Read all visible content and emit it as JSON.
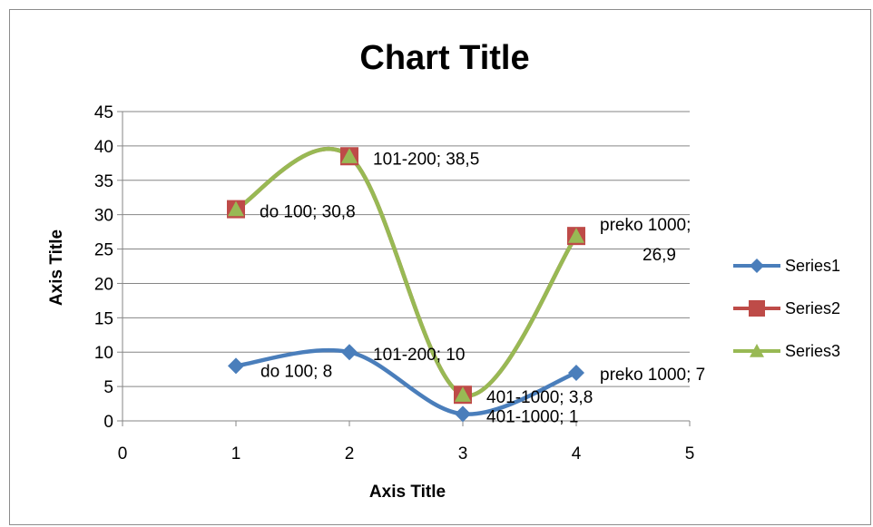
{
  "chart_data": {
    "type": "scatter",
    "title": "Chart Title",
    "xlabel": "Axis Title",
    "ylabel": "Axis Title",
    "xlim": [
      0,
      5
    ],
    "ylim": [
      0,
      45
    ],
    "xticks": [
      "0",
      "1",
      "2",
      "3",
      "4",
      "5"
    ],
    "yticks": [
      "0",
      "5",
      "10",
      "15",
      "20",
      "25",
      "30",
      "35",
      "40",
      "45"
    ],
    "grid": "horizontal",
    "legend": "right",
    "smooth_lines": true,
    "series": [
      {
        "name": "Series1",
        "color": "#4a7ebb",
        "marker": "diamond",
        "x": [
          1,
          2,
          3,
          4
        ],
        "y": [
          8,
          10,
          1,
          7
        ],
        "labels": [
          "do 100; 8",
          "101-200; 10",
          "401-1000; 1",
          "preko 1000; 7"
        ]
      },
      {
        "name": "Series2",
        "color": "#be4b48",
        "marker": "square",
        "x": [
          1,
          2,
          3,
          4
        ],
        "y": [
          30.8,
          38.5,
          3.8,
          26.9
        ],
        "labels": [
          "do 100; 30,8",
          "101-200; 38,5",
          "401-1000; 3,8",
          "preko 1000; 26,9"
        ]
      },
      {
        "name": "Series3",
        "color": "#98b954",
        "marker": "triangle",
        "x": [
          1,
          2,
          3,
          4
        ],
        "y": [
          30.8,
          38.5,
          3.8,
          26.9
        ]
      }
    ]
  }
}
